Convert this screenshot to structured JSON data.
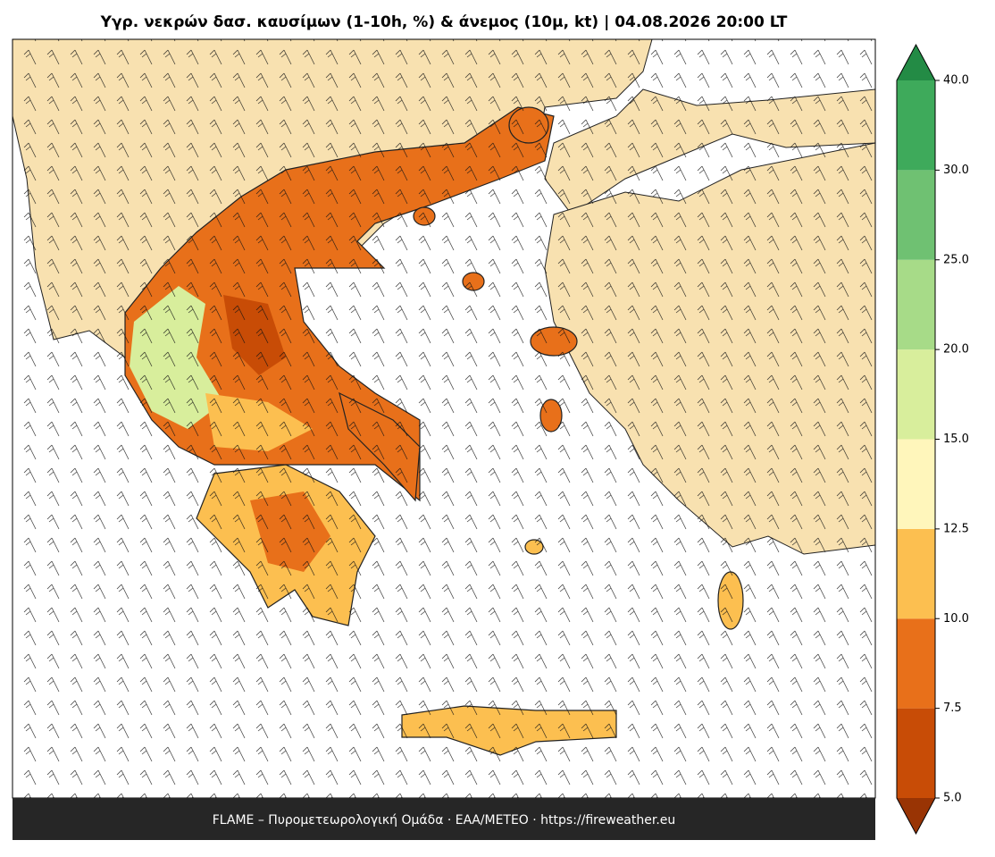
{
  "title": "Υγρ. νεκρών δασ. καυσίμων (1-10h, %) & άνεμος (10μ, kt)  |  04.08.2026 20:00 LT",
  "footer": "FLAME – Πυρομετεωρολογική Ομάδα · ΕΑΑ/METEO · https://fireweather.eu",
  "colorbar": {
    "ticks": [
      {
        "value": 5,
        "label": "5.0"
      },
      {
        "value": 7.5,
        "label": "7.5"
      },
      {
        "value": 10,
        "label": "10.0"
      },
      {
        "value": 12.5,
        "label": "12.5"
      },
      {
        "value": 15,
        "label": "15.0"
      },
      {
        "value": 20,
        "label": "20.0"
      },
      {
        "value": 25,
        "label": "25.0"
      },
      {
        "value": 30,
        "label": "30.0"
      },
      {
        "value": 40,
        "label": "40.0"
      }
    ],
    "colors": [
      "#c84c06",
      "#e8701a",
      "#fcbf50",
      "#fff6bb",
      "#d8ee9c",
      "#a7db88",
      "#6fc172",
      "#3eaa5b"
    ],
    "under_color": "#993404",
    "over_color": "#238b45"
  }
}
